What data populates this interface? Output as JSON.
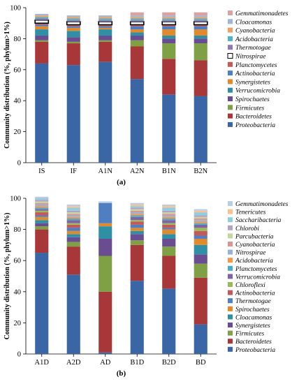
{
  "chart_data": [
    {
      "type": "bar",
      "stacked": true,
      "panel_label": "(a)",
      "ylabel": "Community distribution (%, phylum>1%)",
      "ylim": [
        0,
        100
      ],
      "yticks": [
        0,
        20,
        40,
        60,
        80,
        100
      ],
      "legend_position": "right",
      "categories": [
        "IS",
        "IF",
        "A1N",
        "A2N",
        "B1N",
        "B2N"
      ],
      "series": [
        {
          "name": "Proteobacteria",
          "color": "#3a66a6",
          "values": [
            64,
            63,
            65,
            54,
            44,
            43
          ]
        },
        {
          "name": "Bacteroidetes",
          "color": "#a8373a",
          "values": [
            14,
            14,
            13,
            21,
            23,
            23
          ]
        },
        {
          "name": "Firmicutes",
          "color": "#7fa045",
          "values": [
            1,
            1,
            1,
            4,
            10,
            11
          ]
        },
        {
          "name": "Spirochaetes",
          "color": "#6a4c93",
          "values": [
            3,
            3,
            3,
            3,
            3,
            3
          ]
        },
        {
          "name": "Verrucomicrobia",
          "color": "#2f8fa5",
          "values": [
            4,
            4,
            4,
            2,
            2,
            2
          ]
        },
        {
          "name": "Synergistetes",
          "color": "#e08a2e",
          "values": [
            2,
            2,
            1,
            2,
            4,
            4
          ]
        },
        {
          "name": "Actinobacteria",
          "color": "#4f7ec1",
          "values": [
            1,
            1,
            1,
            2,
            2,
            2
          ]
        },
        {
          "name": "Planctomycetes",
          "color": "#c25a5a",
          "values": [
            1,
            1,
            1,
            1,
            1,
            1
          ]
        },
        {
          "name": "Nitrospirae",
          "color": "#ffffff",
          "values": [
            2,
            2,
            2,
            2,
            2,
            2
          ]
        },
        {
          "name": "Thermotogae",
          "color": "#8f79b3",
          "values": [
            1,
            1,
            1,
            1,
            1,
            1
          ]
        },
        {
          "name": "Acidobacteria",
          "color": "#52b0c4",
          "values": [
            1,
            1,
            1,
            1,
            1,
            1
          ]
        },
        {
          "name": "Cyanobacteria",
          "color": "#f0a060",
          "values": [
            1,
            1,
            1,
            1,
            1,
            1
          ]
        },
        {
          "name": "Cloacamonas",
          "color": "#9fb6d9",
          "values": [
            1,
            1,
            1,
            1,
            1,
            1
          ]
        },
        {
          "name": "Gemmatimonadetes",
          "color": "#d9a3a3",
          "values": [
            0,
            0,
            0,
            2,
            2,
            2
          ]
        }
      ]
    },
    {
      "type": "bar",
      "stacked": true,
      "panel_label": "(b)",
      "ylabel": "Community distribution (%, phylum>1%)",
      "ylim": [
        0,
        100
      ],
      "yticks": [
        0,
        20,
        40,
        60,
        80,
        100
      ],
      "legend_position": "right",
      "categories": [
        "A1D",
        "A2D",
        "AD",
        "B1D",
        "B2D",
        "BD"
      ],
      "series": [
        {
          "name": "Proteobacteria",
          "color": "#3a66a6",
          "values": [
            65,
            51,
            1,
            47,
            42,
            19
          ]
        },
        {
          "name": "Bacteroidetes",
          "color": "#a8373a",
          "values": [
            15,
            18,
            39,
            23,
            21,
            30
          ]
        },
        {
          "name": "Firmicutes",
          "color": "#7fa045",
          "values": [
            2,
            3,
            23,
            3,
            6,
            9
          ]
        },
        {
          "name": "Synergistetes",
          "color": "#6a4c93",
          "values": [
            2,
            3,
            11,
            4,
            5,
            6
          ]
        },
        {
          "name": "Cloacamonas",
          "color": "#2f8fa5",
          "values": [
            2,
            2,
            8,
            2,
            3,
            6
          ]
        },
        {
          "name": "Spirochaetes",
          "color": "#e08a2e",
          "values": [
            2,
            2,
            2,
            2,
            3,
            4
          ]
        },
        {
          "name": "Thermotogae",
          "color": "#4f7ec1",
          "values": [
            1,
            2,
            13,
            2,
            1,
            2
          ]
        },
        {
          "name": "Actinobacteria",
          "color": "#c25a5a",
          "values": [
            2,
            2,
            0,
            2,
            2,
            3
          ]
        },
        {
          "name": "Chloroflexi",
          "color": "#9bbb59",
          "values": [
            1,
            1,
            0,
            1,
            1,
            2
          ]
        },
        {
          "name": "Verrucomicrobia",
          "color": "#8064a2",
          "values": [
            1,
            2,
            0,
            2,
            2,
            2
          ]
        },
        {
          "name": "Planctomycetes",
          "color": "#4bacc6",
          "values": [
            1,
            1,
            0,
            1,
            1,
            1
          ]
        },
        {
          "name": "Acidobacteria",
          "color": "#f79646",
          "values": [
            1,
            1,
            0,
            1,
            1,
            1
          ]
        },
        {
          "name": "Nitrospirae",
          "color": "#95b3d7",
          "values": [
            1,
            1,
            0,
            1,
            1,
            1
          ]
        },
        {
          "name": "Cyanobacteria",
          "color": "#d99694",
          "values": [
            1,
            1,
            0,
            1,
            1,
            1
          ]
        },
        {
          "name": "Parcubacteria",
          "color": "#c3d69b",
          "values": [
            1,
            1,
            0,
            1,
            1,
            1
          ]
        },
        {
          "name": "Chlorobi",
          "color": "#b3a2c7",
          "values": [
            1,
            1,
            0,
            1,
            1,
            1
          ]
        },
        {
          "name": "Saccharibacteria",
          "color": "#93cddd",
          "values": [
            1,
            2,
            0,
            1,
            2,
            2
          ]
        },
        {
          "name": "Tenericutes",
          "color": "#fac090",
          "values": [
            0,
            1,
            0,
            1,
            1,
            1
          ]
        },
        {
          "name": "Gemmatimonadetes",
          "color": "#b9cde5",
          "values": [
            1,
            1,
            1,
            1,
            1,
            1
          ]
        }
      ]
    }
  ]
}
